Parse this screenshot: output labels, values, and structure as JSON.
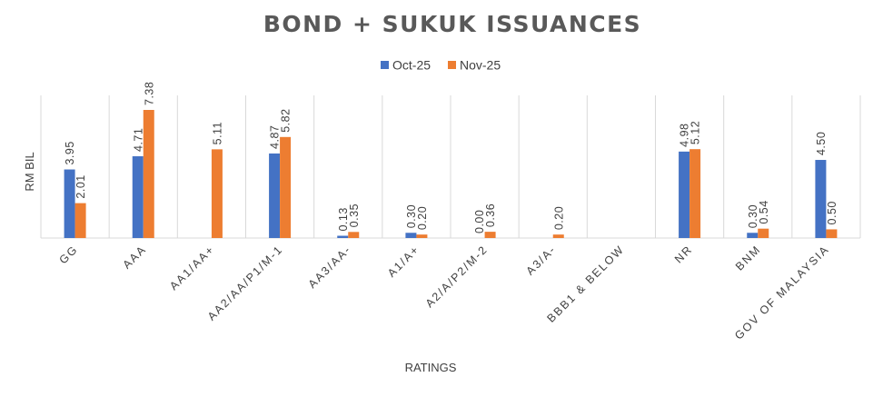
{
  "chart_data": {
    "type": "bar",
    "title": "BOND + SUKUK ISSUANCES",
    "xlabel": "RATINGS",
    "ylabel": "RM BIL",
    "categories": [
      "GG",
      "AAA",
      "AA1/AA+",
      "AA2/AA/P1/M-1",
      "AA3/AA-",
      "A1/A+",
      "A2/A/P2/M-2",
      "A3/A-",
      "BBB1 & BELOW",
      "NR",
      "BNM",
      "GOV OF MALAYSIA"
    ],
    "series": [
      {
        "name": "Oct-25",
        "color": "#4472C4",
        "values": [
          3.95,
          4.71,
          null,
          4.87,
          0.13,
          0.3,
          0.0,
          null,
          null,
          4.98,
          0.3,
          4.5
        ]
      },
      {
        "name": "Nov-25",
        "color": "#ED7D31",
        "values": [
          2.01,
          7.38,
          5.11,
          5.82,
          0.35,
          0.2,
          0.36,
          0.2,
          null,
          5.12,
          0.54,
          0.5
        ]
      }
    ],
    "data_labels": [
      [
        "3.95",
        "4.71",
        "",
        "4.87",
        "0.13",
        "0.30",
        "0.00",
        "",
        "",
        "4.98",
        "0.30",
        "4.50"
      ],
      [
        "2.01",
        "7.38",
        "5.11",
        "5.82",
        "0.35",
        "0.20",
        "0.36",
        "0.20",
        "",
        "5.12",
        "0.54",
        "0.50"
      ]
    ],
    "ylim": [
      0,
      8
    ],
    "grid": "vertical category separators",
    "legend_position": "top-center"
  }
}
